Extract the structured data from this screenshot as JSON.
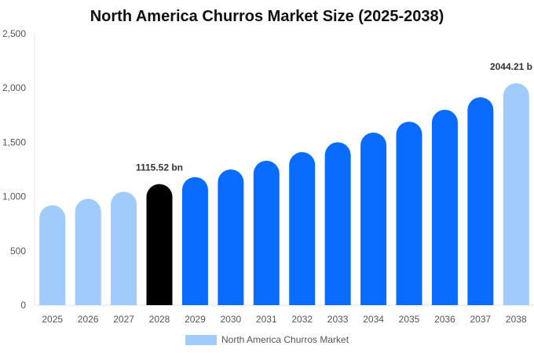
{
  "chart_data": {
    "type": "bar",
    "title": "North America Churros Market Size (2025-2038)",
    "xlabel": "",
    "ylabel": "",
    "categories": [
      "2025",
      "2026",
      "2027",
      "2028",
      "2029",
      "2030",
      "2031",
      "2032",
      "2033",
      "2034",
      "2035",
      "2036",
      "2037",
      "2038"
    ],
    "series": [
      {
        "name": "North America Churros Market",
        "values": [
          920,
          980,
          1045,
          1115.52,
          1180,
          1250,
          1330,
          1410,
          1500,
          1590,
          1690,
          1800,
          1915,
          2044.21
        ],
        "colors": [
          "#a0cbfb",
          "#a0cbfb",
          "#a0cbfb",
          "#000000",
          "#0a6cff",
          "#0a6cff",
          "#0a6cff",
          "#0a6cff",
          "#0a6cff",
          "#0a6cff",
          "#0a6cff",
          "#0a6cff",
          "#0a6cff",
          "#a0cbfb"
        ]
      }
    ],
    "data_labels": [
      {
        "index": 3,
        "text": "1115.52 bn"
      },
      {
        "index": 13,
        "text": "2044.21 b"
      }
    ],
    "ylim": [
      0,
      2500
    ],
    "yticks": [
      0,
      500,
      1000,
      1500,
      2000,
      2500
    ],
    "ytick_labels": [
      "0",
      "500",
      "1,000",
      "1,500",
      "2,000",
      "2,500"
    ],
    "grid": false,
    "legend_position": "bottom-center",
    "legend_color": "#a0cbfb"
  }
}
